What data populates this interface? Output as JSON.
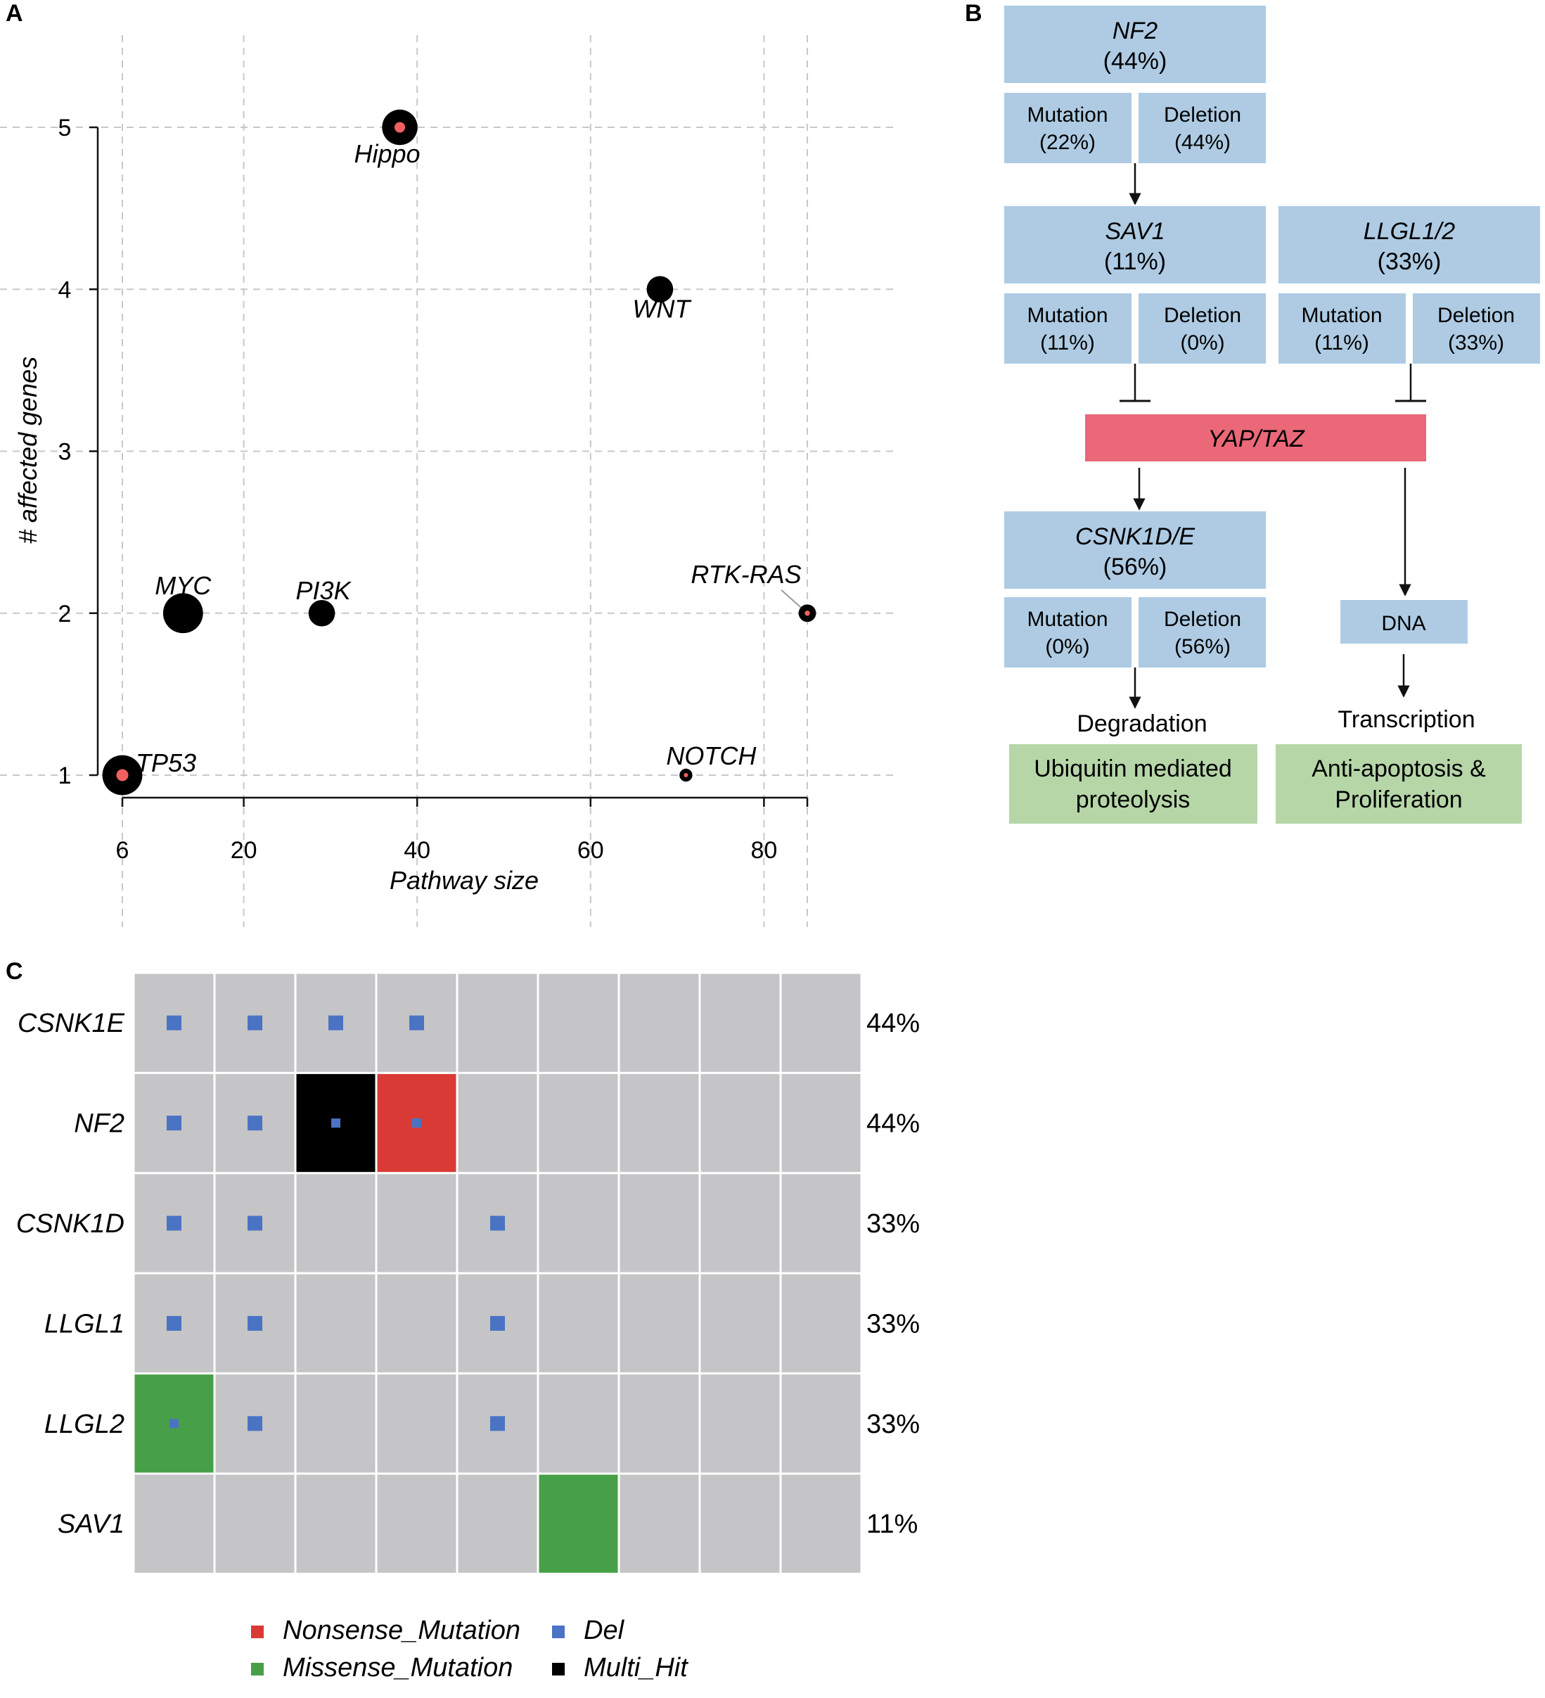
{
  "panels": {
    "a": "A",
    "b": "B",
    "c": "C"
  },
  "colors": {
    "blue_box": "#aecbe3",
    "pink_box": "#ea6878",
    "green_box": "#b6d6a8",
    "heat_bg": "#c5c5c7",
    "nonsense": "#d93a35",
    "missense": "#47a047",
    "del": "#4a73c4",
    "multi": "#000000",
    "point": "#000000",
    "point_core": "#f06060",
    "grid": "#c8c8c8"
  },
  "chart_data": [
    {
      "type": "scatter",
      "panel": "A",
      "xlabel": "Pathway size",
      "ylabel": "# affected genes",
      "xlim": [
        6,
        85
      ],
      "ylim": [
        1,
        5
      ],
      "xticks": [
        6,
        20,
        40,
        60,
        80
      ],
      "yticks": [
        1,
        2,
        3,
        4,
        5
      ],
      "grid": true,
      "points": [
        {
          "label": "Hippo",
          "x": 38,
          "y": 5,
          "size": 6,
          "red_core": true
        },
        {
          "label": "WNT",
          "x": 68,
          "y": 4,
          "size": 4,
          "red_core": false
        },
        {
          "label": "MYC",
          "x": 13,
          "y": 2,
          "size": 7,
          "red_core": false
        },
        {
          "label": "PI3K",
          "x": 29,
          "y": 2,
          "size": 4,
          "red_core": false
        },
        {
          "label": "RTK-RAS",
          "x": 85,
          "y": 2,
          "size": 2,
          "red_core": true
        },
        {
          "label": "TP53",
          "x": 6,
          "y": 1,
          "size": 7,
          "red_core": true
        },
        {
          "label": "NOTCH",
          "x": 71,
          "y": 1,
          "size": 1,
          "red_core": true
        }
      ]
    },
    {
      "type": "heatmap",
      "panel": "C",
      "genes": [
        "CSNK1E",
        "NF2",
        "CSNK1D",
        "LLGL1",
        "LLGL2",
        "SAV1"
      ],
      "percents": [
        "44%",
        "44%",
        "33%",
        "33%",
        "33%",
        "11%"
      ],
      "n_samples": 9,
      "cells": [
        [
          "Del",
          "Del",
          "Del",
          "Del",
          "",
          "",
          "",
          "",
          ""
        ],
        [
          "Del",
          "Del",
          "Multi_Hit+Del",
          "Nonsense_Mutation+Del",
          "",
          "",
          "",
          "",
          ""
        ],
        [
          "Del",
          "Del",
          "",
          "",
          "Del",
          "",
          "",
          "",
          ""
        ],
        [
          "Del",
          "Del",
          "",
          "",
          "Del",
          "",
          "",
          "",
          ""
        ],
        [
          "Missense_Mutation+Del",
          "Del",
          "",
          "",
          "Del",
          "",
          "",
          "",
          ""
        ],
        [
          "",
          "",
          "",
          "",
          "",
          "Missense_Mutation",
          "",
          "",
          ""
        ]
      ],
      "legend": {
        "nonsense": "Nonsense_Mutation",
        "missense": "Missense_Mutation",
        "del": "Del",
        "multi": "Multi_Hit"
      }
    }
  ],
  "pathway": {
    "nf2": {
      "name": "NF2",
      "pct": "(44%)"
    },
    "nf2_mut": {
      "label": "Mutation",
      "pct": "(22%)"
    },
    "nf2_del": {
      "label": "Deletion",
      "pct": "(44%)"
    },
    "sav1": {
      "name": "SAV1",
      "pct": "(11%)"
    },
    "sav1_mut": {
      "label": "Mutation",
      "pct": "(11%)"
    },
    "sav1_del": {
      "label": "Deletion",
      "pct": "(0%)"
    },
    "llgl": {
      "name": "LLGL1/2",
      "pct": "(33%)"
    },
    "llgl_mut": {
      "label": "Mutation",
      "pct": "(11%)"
    },
    "llgl_del": {
      "label": "Deletion",
      "pct": "(33%)"
    },
    "yap": "YAP/TAZ",
    "csnk": {
      "name": "CSNK1D/E",
      "pct": "(56%)"
    },
    "csnk_mut": {
      "label": "Mutation",
      "pct": "(0%)"
    },
    "csnk_del": {
      "label": "Deletion",
      "pct": "(56%)"
    },
    "dna": "DNA",
    "degradation": "Degradation",
    "transcription": "Transcription",
    "ubiquitin": [
      "Ubiquitin mediated",
      "proteolysis"
    ],
    "antiapop": [
      "Anti-apoptosis &",
      "Proliferation"
    ]
  }
}
